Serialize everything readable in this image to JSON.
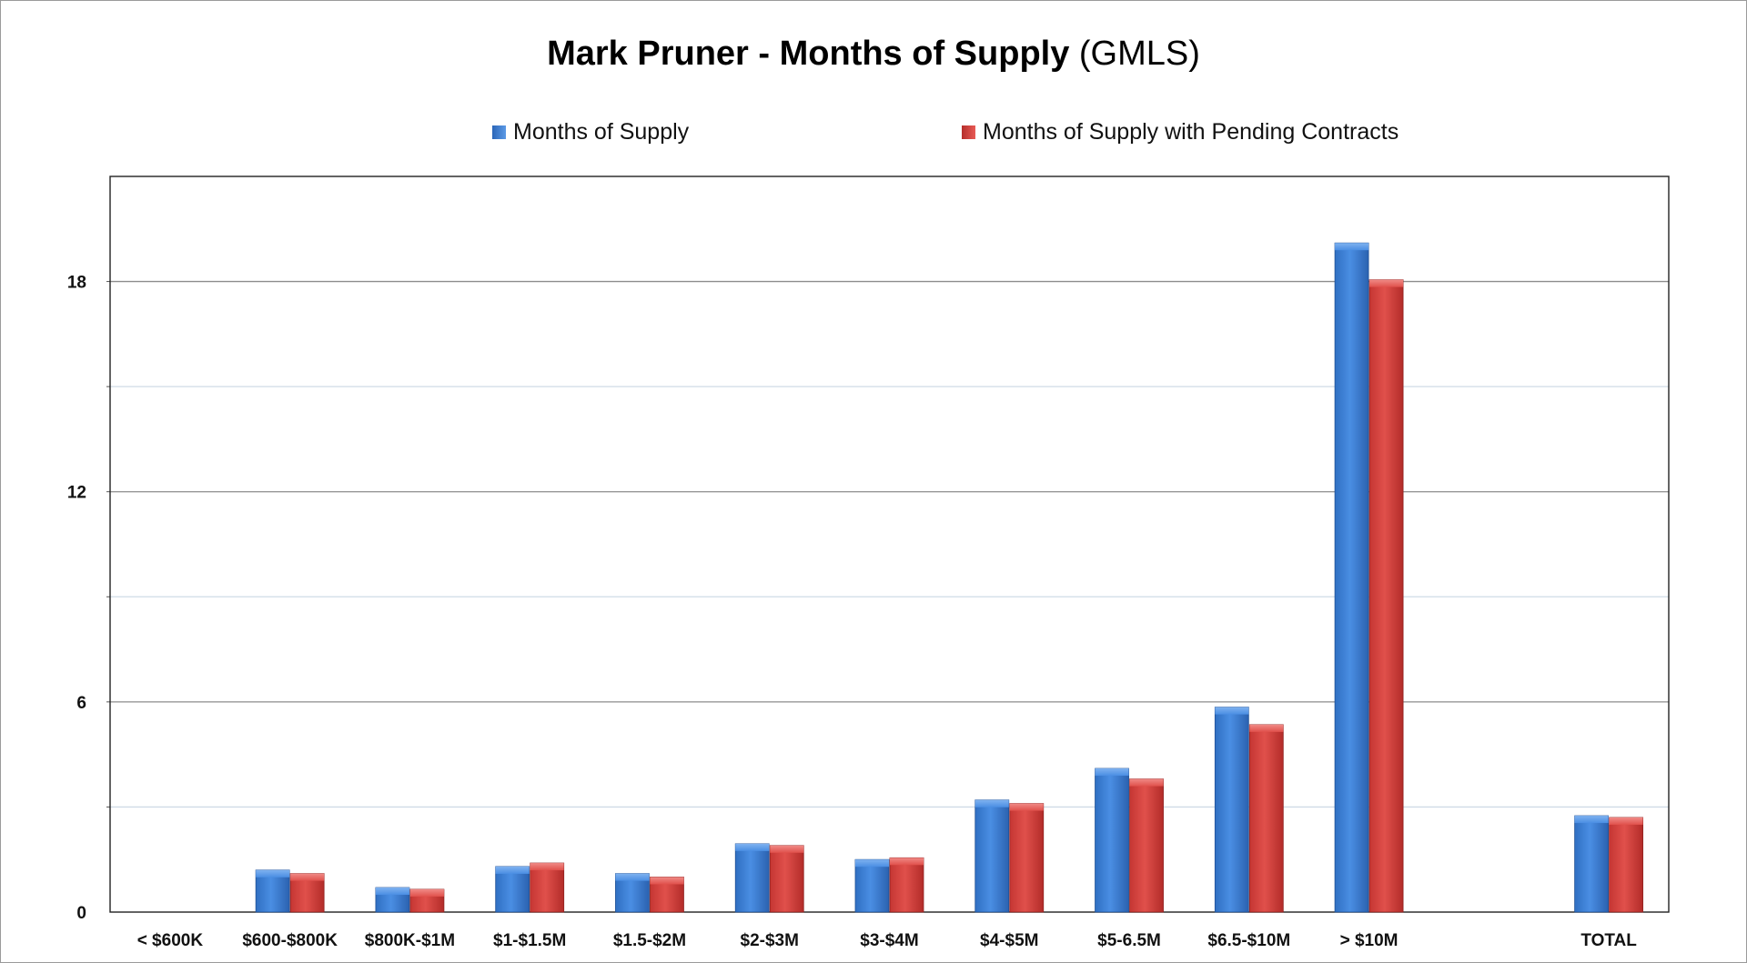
{
  "chart_data": {
    "type": "bar",
    "title": "Mark Pruner - Months of Supply",
    "title_suffix": "(GMLS)",
    "categories": [
      "< $600K",
      "$600-$800K",
      "$800K-$1M",
      "$1-$1.5M",
      "$1.5-$2M",
      "$2-$3M",
      "$3-$4M",
      "$4-$5M",
      "$5-6.5M",
      "$6.5-$10M",
      "> $10M",
      "",
      "TOTAL"
    ],
    "series": [
      {
        "name": "Months of Supply",
        "color": "#3a7fd5",
        "values": [
          0,
          1.2,
          0.7,
          1.3,
          1.1,
          1.95,
          1.5,
          3.2,
          4.1,
          5.85,
          19.1,
          null,
          2.75
        ]
      },
      {
        "name": "Months of Supply with Pending Contracts",
        "color": "#d43d3a",
        "values": [
          0,
          1.1,
          0.65,
          1.4,
          1.0,
          1.9,
          1.55,
          3.1,
          3.8,
          5.35,
          18.05,
          null,
          2.7
        ]
      }
    ],
    "y_ticks": [
      "0",
      "6",
      "12",
      "18"
    ],
    "ylim": [
      0,
      21
    ],
    "gridlines": [
      3,
      6,
      9,
      12,
      15,
      18
    ],
    "legend_position": "top",
    "xlabel": "",
    "ylabel": ""
  }
}
